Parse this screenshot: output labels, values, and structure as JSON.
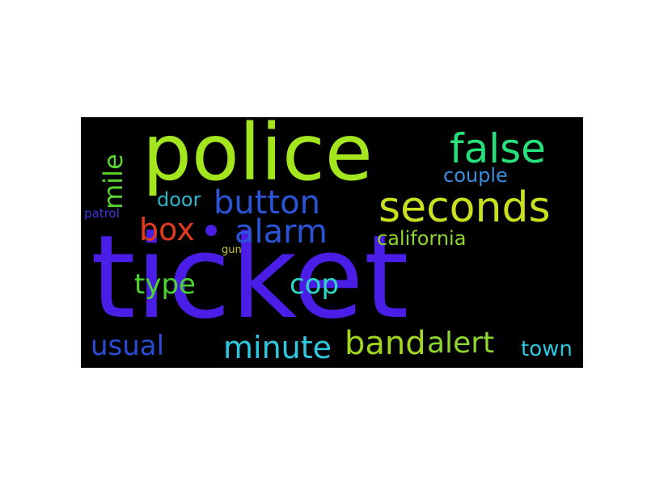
{
  "word_cloud": {
    "words": [
      {
        "text": "ticket",
        "color": "#4a1ee6"
      },
      {
        "text": "police",
        "color": "#a4e61e"
      },
      {
        "text": "false",
        "color": "#26e07a"
      },
      {
        "text": "seconds",
        "color": "#c8e01e"
      },
      {
        "text": "button",
        "color": "#2b55d6"
      },
      {
        "text": "alarm",
        "color": "#2b55d6"
      },
      {
        "text": "box",
        "color": "#e03a1e"
      },
      {
        "text": "mile",
        "color": "#58d62e"
      },
      {
        "text": "door",
        "color": "#2fb4c8"
      },
      {
        "text": "couple",
        "color": "#3a8ee0"
      },
      {
        "text": "california",
        "color": "#8ed62e"
      },
      {
        "text": "patrol",
        "color": "#3a3ae0"
      },
      {
        "text": "gun",
        "color": "#c8c81e"
      },
      {
        "text": "type",
        "color": "#4ad62e"
      },
      {
        "text": "cop",
        "color": "#2ed6c8"
      },
      {
        "text": "usual",
        "color": "#2b4ad6"
      },
      {
        "text": "minute",
        "color": "#2ec8e0"
      },
      {
        "text": "band",
        "color": "#a0d61e"
      },
      {
        "text": "alert",
        "color": "#8ed62e"
      },
      {
        "text": "town",
        "color": "#2ec8e0"
      }
    ],
    "background": "#000000"
  }
}
